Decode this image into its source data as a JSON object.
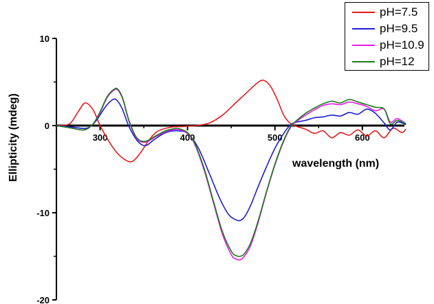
{
  "chart_data": {
    "type": "line",
    "title": "",
    "xlabel": "wavelength (nm)",
    "ylabel": "Ellipticity (mdeg)",
    "xlim": [
      250,
      660
    ],
    "ylim": [
      -20,
      10
    ],
    "x_ticks": [
      300,
      400,
      500,
      600
    ],
    "y_ticks": [
      10,
      0,
      -10,
      -20
    ],
    "x_tick_labels": [
      "300",
      "400",
      "500",
      "600"
    ],
    "y_tick_labels": [
      "10",
      "0",
      "-10",
      "-20"
    ],
    "grid": false,
    "legend_position": "top-right",
    "series": [
      {
        "name": "pH=7.5",
        "color": "#e8191b",
        "x": [
          250,
          265,
          275,
          283,
          292,
          300,
          310,
          320,
          330,
          337,
          345,
          355,
          365,
          380,
          395,
          410,
          425,
          440,
          455,
          470,
          480,
          487,
          495,
          503,
          510,
          517,
          525,
          535,
          545,
          555,
          565,
          575,
          585,
          595,
          605,
          615,
          625,
          635,
          645,
          650
        ],
        "y": [
          0.0,
          0.2,
          1.6,
          2.6,
          1.8,
          0.0,
          -1.8,
          -3.2,
          -4.0,
          -4.1,
          -3.3,
          -1.8,
          -0.7,
          -0.2,
          -0.1,
          0.0,
          0.3,
          1.2,
          2.6,
          4.0,
          4.9,
          5.2,
          4.5,
          2.9,
          1.2,
          0.3,
          -0.1,
          -0.4,
          -0.9,
          -0.6,
          -1.4,
          -0.8,
          -1.1,
          -0.5,
          -1.2,
          -0.6,
          -1.4,
          -0.3,
          -0.8,
          -0.4
        ]
      },
      {
        "name": "pH=9.5",
        "color": "#1b1bd4",
        "x": [
          250,
          270,
          285,
          295,
          305,
          312,
          318,
          325,
          333,
          343,
          352,
          362,
          375,
          388,
          400,
          412,
          425,
          437,
          447,
          455,
          460,
          465,
          472,
          480,
          490,
          500,
          510,
          518,
          525,
          535,
          545,
          555,
          565,
          575,
          585,
          595,
          605,
          615,
          625,
          632,
          640,
          650
        ],
        "y": [
          0.0,
          -0.2,
          -0.3,
          0.5,
          2.0,
          2.8,
          3.0,
          2.0,
          -0.1,
          -1.8,
          -2.3,
          -1.6,
          -0.8,
          -0.6,
          -0.9,
          -2.5,
          -5.5,
          -8.4,
          -10.2,
          -10.8,
          -10.9,
          -10.5,
          -9.2,
          -7.2,
          -4.8,
          -2.6,
          -0.9,
          0.1,
          0.4,
          0.6,
          0.9,
          1.0,
          1.2,
          1.1,
          1.5,
          1.3,
          1.9,
          1.4,
          0.3,
          -0.5,
          0.4,
          0.1
        ]
      },
      {
        "name": "pH=10.9",
        "color": "#e81be8",
        "x": [
          250,
          268,
          282,
          292,
          300,
          308,
          315,
          320,
          326,
          333,
          342,
          352,
          365,
          378,
          392,
          405,
          418,
          430,
          440,
          450,
          455,
          460,
          465,
          472,
          480,
          490,
          500,
          510,
          518,
          525,
          535,
          545,
          555,
          565,
          575,
          585,
          595,
          605,
          615,
          625,
          632,
          640,
          650
        ],
        "y": [
          0.0,
          -0.3,
          -0.5,
          0.2,
          1.5,
          3.2,
          4.0,
          4.1,
          3.0,
          0.5,
          -1.5,
          -1.9,
          -1.2,
          -0.6,
          -0.5,
          -1.5,
          -4.8,
          -9.0,
          -12.5,
          -14.8,
          -15.3,
          -15.4,
          -15.0,
          -13.8,
          -11.4,
          -7.8,
          -4.5,
          -1.8,
          -0.2,
          0.5,
          1.2,
          1.8,
          2.3,
          2.5,
          2.4,
          2.7,
          2.5,
          2.2,
          1.7,
          1.9,
          0.4,
          0.8,
          0.2
        ]
      },
      {
        "name": "pH=12",
        "color": "#1a7a1a",
        "x": [
          250,
          268,
          282,
          292,
          300,
          308,
          315,
          320,
          326,
          333,
          342,
          352,
          365,
          378,
          392,
          405,
          418,
          430,
          440,
          450,
          455,
          460,
          465,
          472,
          480,
          490,
          500,
          510,
          518,
          525,
          535,
          545,
          555,
          565,
          575,
          585,
          595,
          605,
          615,
          625,
          632,
          640,
          650
        ],
        "y": [
          0.0,
          -0.3,
          -0.5,
          0.2,
          1.6,
          3.3,
          4.1,
          4.2,
          3.1,
          0.6,
          -1.4,
          -1.8,
          -1.1,
          -0.5,
          -0.4,
          -1.4,
          -4.6,
          -8.8,
          -12.2,
          -14.4,
          -14.9,
          -15.0,
          -14.7,
          -13.5,
          -11.2,
          -7.7,
          -4.4,
          -1.7,
          -0.1,
          0.6,
          1.4,
          2.0,
          2.5,
          2.8,
          2.6,
          3.0,
          2.7,
          2.4,
          2.1,
          1.9,
          0.2,
          0.6,
          0.2
        ]
      }
    ]
  }
}
